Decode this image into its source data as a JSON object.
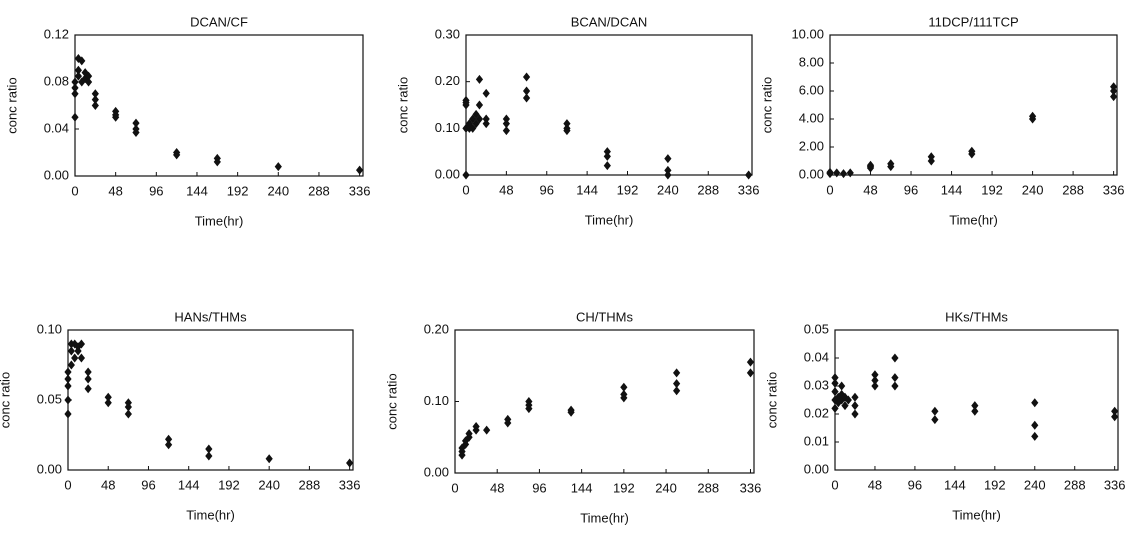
{
  "chart_data": [
    {
      "type": "scatter",
      "title": "DCAN/CF",
      "x_label": "Time(hr)",
      "y_label": "conc ratio",
      "color": "#111111",
      "x": [
        0,
        0,
        0,
        0,
        4,
        4,
        4,
        8,
        8,
        12,
        12,
        16,
        16,
        24,
        24,
        24,
        48,
        48,
        48,
        72,
        72,
        72,
        120,
        120,
        168,
        168,
        240,
        336
      ],
      "values": [
        0.05,
        0.07,
        0.075,
        0.08,
        0.1,
        0.09,
        0.085,
        0.098,
        0.08,
        0.083,
        0.088,
        0.085,
        0.08,
        0.07,
        0.065,
        0.06,
        0.055,
        0.052,
        0.05,
        0.045,
        0.04,
        0.037,
        0.02,
        0.018,
        0.015,
        0.012,
        0.008,
        0.005
      ],
      "xlim": [
        0,
        340
      ],
      "xticks": [
        0,
        48,
        96,
        144,
        192,
        240,
        288,
        336
      ],
      "ylim": [
        0,
        0.12
      ],
      "yticks": [
        {
          "value": 0,
          "label": "0.00"
        },
        {
          "value": 0.04,
          "label": "0.04"
        },
        {
          "value": 0.08,
          "label": "0.08"
        },
        {
          "value": 0.12,
          "label": "0.12"
        }
      ]
    },
    {
      "type": "scatter",
      "title": "BCAN/DCAN",
      "x_label": "Time(hr)",
      "y_label": "conc ratio",
      "color": "#111111",
      "x": [
        0,
        0,
        0,
        0,
        0,
        4,
        4,
        4,
        8,
        8,
        12,
        12,
        16,
        16,
        16,
        24,
        24,
        24,
        48,
        48,
        48,
        72,
        72,
        72,
        120,
        120,
        120,
        168,
        168,
        168,
        240,
        240,
        240,
        336
      ],
      "values": [
        0.0,
        0.1,
        0.15,
        0.16,
        0.155,
        0.1,
        0.11,
        0.105,
        0.1,
        0.12,
        0.11,
        0.13,
        0.15,
        0.205,
        0.12,
        0.175,
        0.12,
        0.11,
        0.12,
        0.11,
        0.095,
        0.21,
        0.18,
        0.165,
        0.11,
        0.1,
        0.095,
        0.05,
        0.04,
        0.02,
        0.035,
        0.01,
        0.0,
        0.0
      ],
      "xlim": [
        0,
        340
      ],
      "xticks": [
        0,
        48,
        96,
        144,
        192,
        240,
        288,
        336
      ],
      "ylim": [
        0,
        0.3
      ],
      "yticks": [
        {
          "value": 0,
          "label": "0.00"
        },
        {
          "value": 0.1,
          "label": "0.10"
        },
        {
          "value": 0.2,
          "label": "0.20"
        },
        {
          "value": 0.3,
          "label": "0.30"
        }
      ]
    },
    {
      "type": "scatter",
      "title": "11DCP/111TCP",
      "x_label": "Time(hr)",
      "y_label": "conc ratio",
      "color": "#111111",
      "x": [
        0,
        0,
        8,
        16,
        24,
        48,
        48,
        48,
        72,
        72,
        120,
        120,
        168,
        168,
        240,
        240,
        336,
        336,
        336
      ],
      "values": [
        0.1,
        0.2,
        0.15,
        0.1,
        0.15,
        0.5,
        0.7,
        0.6,
        0.6,
        0.8,
        1.0,
        1.3,
        1.5,
        1.7,
        4.0,
        4.2,
        5.6,
        6.0,
        6.3
      ],
      "xlim": [
        0,
        340
      ],
      "xticks": [
        0,
        48,
        96,
        144,
        192,
        240,
        288,
        336
      ],
      "ylim": [
        0,
        10
      ],
      "yticks": [
        {
          "value": 0,
          "label": "0.00"
        },
        {
          "value": 2,
          "label": "2.00"
        },
        {
          "value": 4,
          "label": "4.00"
        },
        {
          "value": 6,
          "label": "6.00"
        },
        {
          "value": 8,
          "label": "8.00"
        },
        {
          "value": 10,
          "label": "10.00"
        }
      ]
    },
    {
      "type": "scatter",
      "title": "HANs/THMs",
      "x_label": "Time(hr)",
      "y_label": "conc ratio",
      "color": "#111111",
      "x": [
        0,
        0,
        0,
        0,
        0,
        4,
        4,
        4,
        8,
        8,
        12,
        12,
        16,
        16,
        24,
        24,
        24,
        48,
        48,
        72,
        72,
        72,
        120,
        120,
        168,
        168,
        240,
        336
      ],
      "values": [
        0.04,
        0.05,
        0.06,
        0.065,
        0.07,
        0.09,
        0.085,
        0.075,
        0.09,
        0.08,
        0.088,
        0.085,
        0.09,
        0.08,
        0.07,
        0.065,
        0.058,
        0.052,
        0.048,
        0.048,
        0.045,
        0.04,
        0.022,
        0.018,
        0.015,
        0.01,
        0.008,
        0.005
      ],
      "xlim": [
        0,
        340
      ],
      "xticks": [
        0,
        48,
        96,
        144,
        192,
        240,
        288,
        336
      ],
      "ylim": [
        0,
        0.1
      ],
      "yticks": [
        {
          "value": 0,
          "label": "0.00"
        },
        {
          "value": 0.05,
          "label": "0.05"
        },
        {
          "value": 0.1,
          "label": "0.10"
        }
      ]
    },
    {
      "type": "scatter",
      "title": "CH/THMs",
      "x_label": "Time(hr)",
      "y_label": "conc ratio",
      "color": "#111111",
      "x": [
        8,
        8,
        8,
        12,
        12,
        16,
        16,
        24,
        24,
        36,
        60,
        60,
        84,
        84,
        84,
        132,
        132,
        192,
        192,
        192,
        252,
        252,
        252,
        336,
        336
      ],
      "values": [
        0.025,
        0.03,
        0.035,
        0.04,
        0.045,
        0.05,
        0.055,
        0.06,
        0.065,
        0.06,
        0.07,
        0.075,
        0.09,
        0.095,
        0.1,
        0.085,
        0.088,
        0.105,
        0.11,
        0.12,
        0.115,
        0.125,
        0.14,
        0.14,
        0.155
      ],
      "xlim": [
        0,
        340
      ],
      "xticks": [
        0,
        48,
        96,
        144,
        192,
        240,
        288,
        336
      ],
      "ylim": [
        0,
        0.2
      ],
      "yticks": [
        {
          "value": 0,
          "label": "0.00"
        },
        {
          "value": 0.1,
          "label": "0.10"
        },
        {
          "value": 0.2,
          "label": "0.20"
        }
      ]
    },
    {
      "type": "scatter",
      "title": "HKs/THMs",
      "x_label": "Time(hr)",
      "y_label": "conc ratio",
      "color": "#111111",
      "x": [
        0,
        0,
        0,
        0,
        0,
        4,
        4,
        8,
        8,
        8,
        12,
        12,
        16,
        24,
        24,
        24,
        48,
        48,
        48,
        72,
        72,
        72,
        120,
        120,
        168,
        168,
        240,
        240,
        240,
        336,
        336
      ],
      "values": [
        0.022,
        0.025,
        0.028,
        0.031,
        0.033,
        0.024,
        0.026,
        0.025,
        0.03,
        0.027,
        0.023,
        0.026,
        0.025,
        0.02,
        0.023,
        0.026,
        0.03,
        0.032,
        0.034,
        0.04,
        0.033,
        0.03,
        0.018,
        0.021,
        0.021,
        0.023,
        0.012,
        0.016,
        0.024,
        0.019,
        0.021
      ],
      "xlim": [
        0,
        340
      ],
      "xticks": [
        0,
        48,
        96,
        144,
        192,
        240,
        288,
        336
      ],
      "ylim": [
        0,
        0.05
      ],
      "yticks": [
        {
          "value": 0,
          "label": "0.00"
        },
        {
          "value": 0.01,
          "label": "0.01"
        },
        {
          "value": 0.02,
          "label": "0.02"
        },
        {
          "value": 0.03,
          "label": "0.03"
        },
        {
          "value": 0.04,
          "label": "0.04"
        },
        {
          "value": 0.05,
          "label": "0.05"
        }
      ]
    }
  ]
}
